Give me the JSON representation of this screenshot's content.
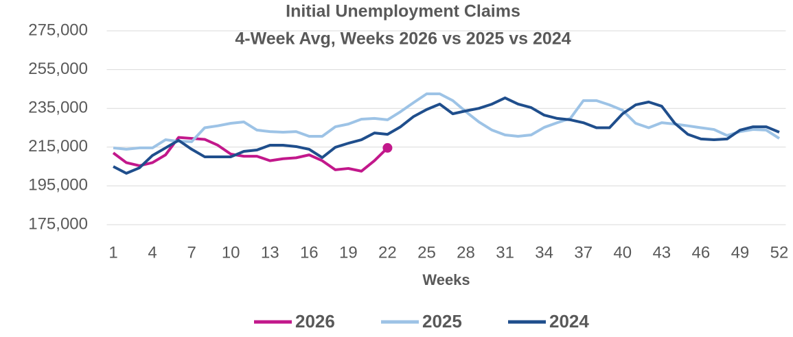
{
  "chart_data": {
    "type": "line",
    "title": "Initial Unemployment Claims",
    "subtitle": "4-Week Avg, Weeks 2026 vs 2025 vs 2024",
    "x_label": "Weeks",
    "x": [
      1,
      2,
      3,
      4,
      5,
      6,
      7,
      8,
      9,
      10,
      11,
      12,
      13,
      14,
      15,
      16,
      17,
      18,
      19,
      20,
      21,
      22,
      23,
      24,
      25,
      26,
      27,
      28,
      29,
      30,
      31,
      32,
      33,
      34,
      35,
      36,
      37,
      38,
      39,
      40,
      41,
      42,
      43,
      44,
      45,
      46,
      47,
      48,
      49,
      50,
      51,
      52
    ],
    "xlim": [
      0.5,
      52.5
    ],
    "xticks": [
      1,
      4,
      7,
      10,
      13,
      16,
      19,
      22,
      25,
      28,
      31,
      34,
      37,
      40,
      43,
      46,
      49,
      52
    ],
    "ylim": [
      175000,
      275000
    ],
    "yticks": [
      {
        "value": 175000,
        "label": "175,000"
      },
      {
        "value": 195000,
        "label": "195,000"
      },
      {
        "value": 215000,
        "label": "215,000"
      },
      {
        "value": 235000,
        "label": "235,000"
      },
      {
        "value": 255000,
        "label": "255,000"
      },
      {
        "value": 275000,
        "label": "275,000"
      }
    ],
    "grid": true,
    "legend": "bottom",
    "series": [
      {
        "name": "2026",
        "color": "#c2188b",
        "last_point_marker": true,
        "values": [
          212000,
          207000,
          205400,
          207000,
          211000,
          220000,
          219500,
          219000,
          216000,
          211400,
          210300,
          210300,
          208000,
          209000,
          209500,
          211000,
          208000,
          203300,
          204000,
          202600,
          208000,
          214600,
          null,
          null,
          null,
          null,
          null,
          null,
          null,
          null,
          null,
          null,
          null,
          null,
          null,
          null,
          null,
          null,
          null,
          null,
          null,
          null,
          null,
          null,
          null,
          null,
          null,
          null,
          null,
          null,
          null,
          null
        ]
      },
      {
        "name": "2025",
        "color": "#9dc3e6",
        "values": [
          214600,
          213900,
          214600,
          214600,
          218800,
          218000,
          217800,
          225000,
          226000,
          227300,
          228000,
          223800,
          223000,
          222700,
          223000,
          220600,
          220600,
          225500,
          226900,
          229400,
          229800,
          229100,
          233300,
          238000,
          242500,
          242500,
          239000,
          233300,
          228000,
          223800,
          221300,
          220600,
          221300,
          225200,
          227600,
          229800,
          239000,
          239000,
          236800,
          234000,
          227300,
          225000,
          227600,
          226900,
          226000,
          225000,
          224100,
          221000,
          223000,
          224100,
          223800,
          219500
        ]
      },
      {
        "name": "2024",
        "color": "#1f4e8c",
        "values": [
          205000,
          201500,
          204300,
          210700,
          214600,
          218500,
          213900,
          210000,
          210000,
          210000,
          212800,
          213500,
          216000,
          216000,
          215300,
          213900,
          209600,
          214900,
          217000,
          218800,
          222300,
          221600,
          225500,
          230800,
          234400,
          237200,
          232200,
          233700,
          235000,
          237200,
          240400,
          237200,
          235400,
          231500,
          229800,
          229100,
          227600,
          225000,
          225000,
          232200,
          236800,
          238300,
          236100,
          227300,
          221600,
          219200,
          218800,
          219200,
          223800,
          225500,
          225500,
          222700
        ]
      }
    ]
  }
}
